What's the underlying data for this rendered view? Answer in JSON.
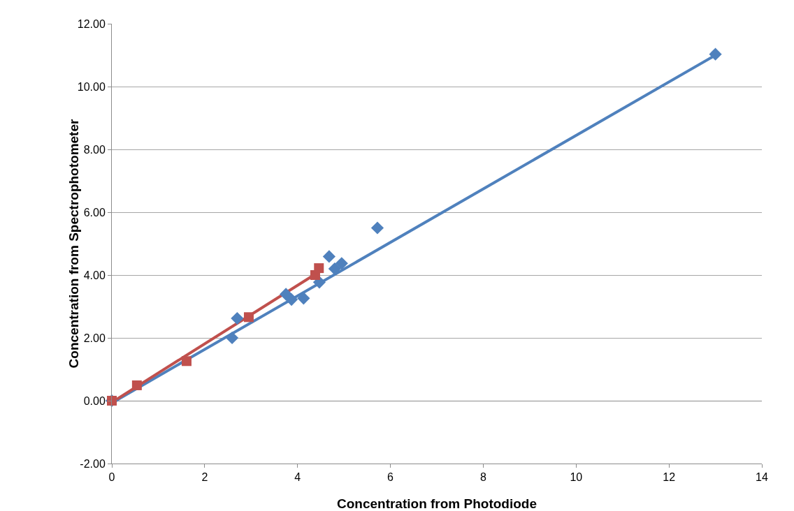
{
  "chart_data": {
    "type": "scatter",
    "xlabel": "Concentration from Photodiode",
    "ylabel": "Concentration from Spectrophotometer",
    "xlim": [
      0,
      14
    ],
    "xticks": [
      0,
      2,
      4,
      6,
      8,
      10,
      12,
      14
    ],
    "ylim": [
      -2,
      12
    ],
    "yticks": [
      {
        "value": -2,
        "label": "-2.00"
      },
      {
        "value": 0,
        "label": "0.00"
      },
      {
        "value": 2,
        "label": "2.00"
      },
      {
        "value": 4,
        "label": "4.00"
      },
      {
        "value": 6,
        "label": "6.00"
      },
      {
        "value": 8,
        "label": "8.00"
      },
      {
        "value": 10,
        "label": "10.00"
      },
      {
        "value": 12,
        "label": "12.00"
      }
    ],
    "grid": "y",
    "series": [
      {
        "color": "#4f81bd",
        "marker": "diamond",
        "x": [
          0,
          2.59,
          2.7,
          3.75,
          3.87,
          4.13,
          4.47,
          4.68,
          4.8,
          4.95,
          5.72,
          13.0
        ],
        "values": [
          0,
          2.0,
          2.62,
          3.39,
          3.22,
          3.26,
          3.77,
          4.59,
          4.2,
          4.37,
          5.5,
          11.03
        ]
      },
      {
        "color": "#c0504d",
        "marker": "square",
        "x": [
          0,
          0.54,
          1.61,
          2.95,
          4.38,
          4.46
        ],
        "values": [
          0,
          0.49,
          1.26,
          2.66,
          4.0,
          4.22
        ]
      },
      {
        "type": "line",
        "color": "#4f81bd",
        "line_style": "solid",
        "marker": "none",
        "x": [
          0,
          13.0
        ],
        "values": [
          -0.07,
          11.0
        ]
      },
      {
        "type": "line",
        "color": "#c0504d",
        "line_style": "solid",
        "marker": "none",
        "x": [
          0,
          4.46
        ],
        "values": [
          -0.05,
          4.1
        ]
      }
    ]
  }
}
